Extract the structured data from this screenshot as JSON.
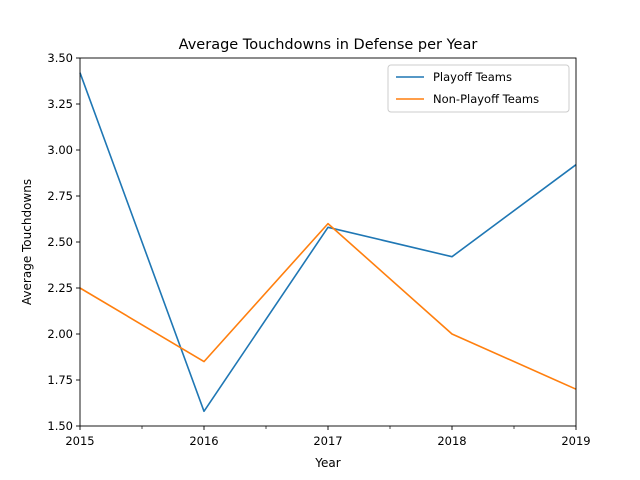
{
  "chart_data": {
    "type": "line",
    "title": "Average Touchdowns in Defense per Year",
    "xlabel": "Year",
    "ylabel": "Average Touchdowns",
    "x": [
      2015,
      2016,
      2017,
      2018,
      2019
    ],
    "xlim": [
      2015,
      2019
    ],
    "ylim": [
      1.5,
      3.5
    ],
    "x_ticks": [
      "2015",
      "2016",
      "2017",
      "2018",
      "2019"
    ],
    "x_minor_ticks": [
      2015.5,
      2016.5,
      2017.5,
      2018.5
    ],
    "y_ticks": [
      "1.50",
      "1.75",
      "2.00",
      "2.25",
      "2.50",
      "2.75",
      "3.00",
      "3.25",
      "3.50"
    ],
    "grid": false,
    "legend_position": "top-right",
    "series": [
      {
        "name": "Playoff Teams",
        "color": "#1f77b4",
        "values": [
          3.42,
          1.58,
          2.58,
          2.42,
          2.92
        ]
      },
      {
        "name": "Non-Playoff Teams",
        "color": "#ff7f0e",
        "values": [
          2.25,
          1.85,
          2.6,
          2.0,
          1.7
        ]
      }
    ]
  }
}
